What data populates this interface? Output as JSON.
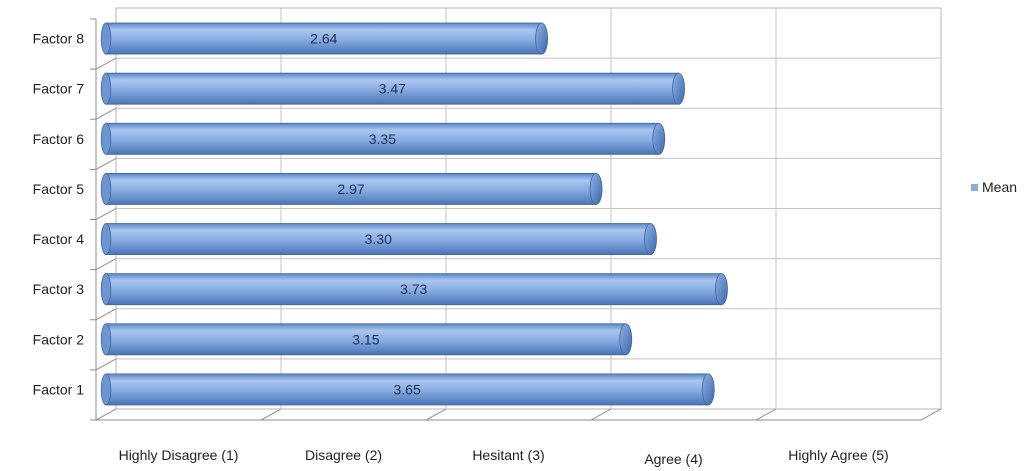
{
  "chart_data": {
    "type": "bar",
    "orientation": "horizontal",
    "three_d": true,
    "categories": [
      "Factor 1",
      "Factor 2",
      "Factor 3",
      "Factor 4",
      "Factor 5",
      "Factor 6",
      "Factor 7",
      "Factor 8"
    ],
    "series": [
      {
        "name": "Mean",
        "values": [
          3.65,
          3.15,
          3.73,
          3.3,
          2.97,
          3.35,
          3.47,
          2.64
        ],
        "labels": [
          "3.65",
          "3.15",
          "3.73",
          "3.30",
          "2.97",
          "3.35",
          "3.47",
          "2.64"
        ],
        "color": "#7ea6e0"
      }
    ],
    "x_tick_labels": [
      "Highly Disagree (1)",
      "Disagree (2)",
      "Hesitant (3)",
      "Agree (4)",
      "Highly Agree (5)"
    ],
    "xlim": [
      0,
      5
    ],
    "grid": true,
    "legend_position": "right",
    "title": "",
    "xlabel": "",
    "ylabel": ""
  }
}
